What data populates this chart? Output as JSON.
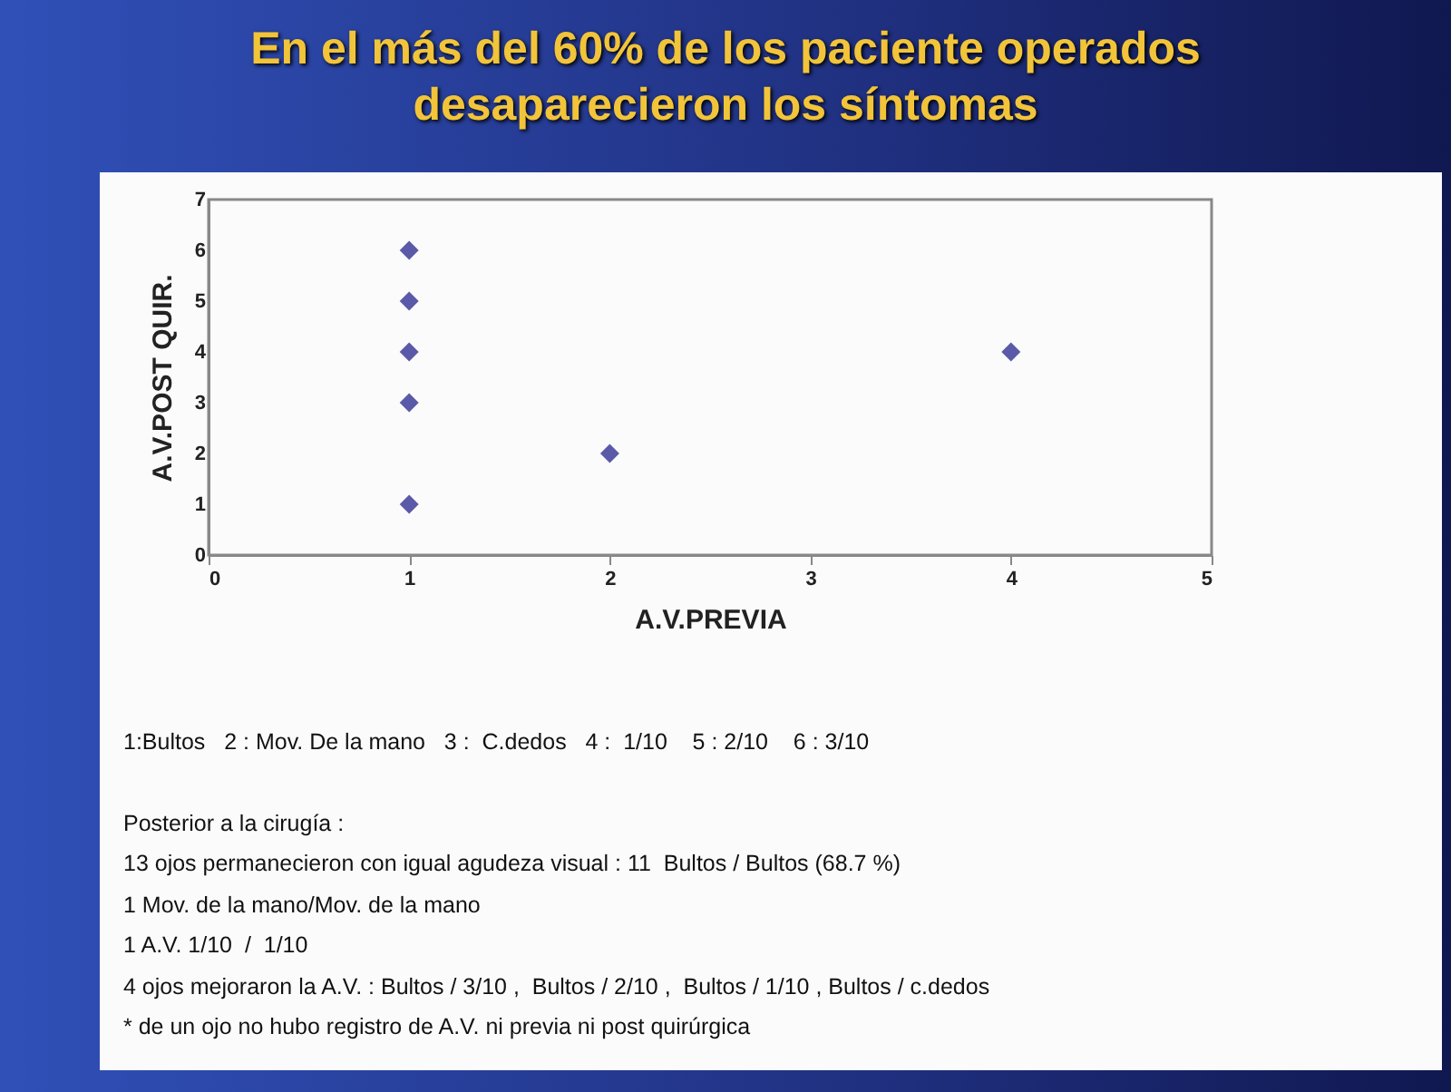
{
  "chart_data": {
    "type": "scatter",
    "title": "En el más del 60% de los paciente operados desaparecieron los síntomas",
    "xlabel": "A.V.PREVIA",
    "ylabel": "A.V.POST QUIR.",
    "x": [
      1,
      1,
      1,
      1,
      1,
      2,
      4
    ],
    "series": [
      {
        "color": "#5a5aa8",
        "values": [
          6,
          5,
          4,
          3,
          1,
          2,
          4
        ]
      }
    ],
    "xlim": [
      0,
      5
    ],
    "xticks": [
      0,
      1,
      2,
      3,
      4,
      5
    ],
    "ylim": [
      0,
      7
    ],
    "yticks": [
      0,
      1,
      2,
      3,
      4,
      5,
      6,
      7
    ],
    "marker": "diamond",
    "grid": false,
    "annotations": [
      "1:Bultos   2 : Mov. De la mano   3 :  C.dedos   4 :  1/10    5 : 2/10    6 : 3/10",
      "Posterior a la cirugía :",
      "13 ojos permanecieron con igual agudeza visual : 11  Bultos / Bultos (68.7 %)",
      "1 Mov. de la mano/Mov. de la mano",
      "1 A.V. 1/10  /  1/10",
      "4 ojos mejoraron la A.V. : Bultos / 3/10 ,  Bultos / 2/10 ,  Bultos / 1/10 , Bultos / c.dedos",
      "* de un ojo no hubo registro de A.V. ni previa ni post quirúrgica"
    ]
  }
}
